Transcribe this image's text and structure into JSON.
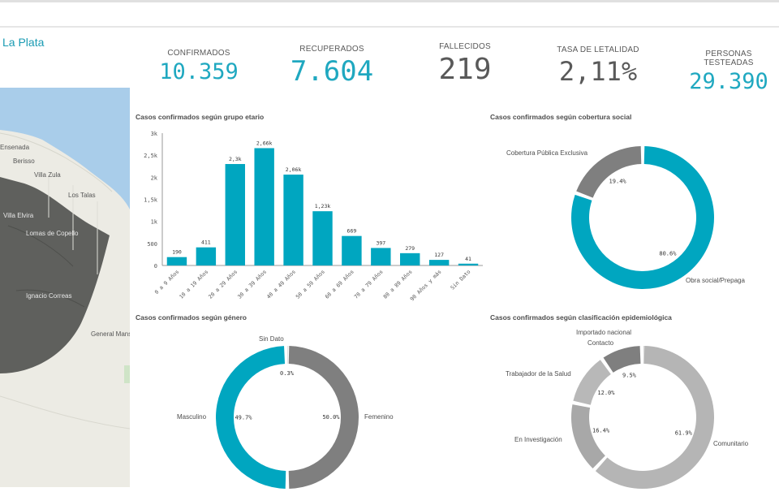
{
  "header": {
    "place": "La Plata"
  },
  "map": {
    "labels": [
      "Ensenada",
      "Berisso",
      "Villa Zula",
      "Los Talas",
      "Villa Elvira",
      "Lomas de Copello",
      "Ignacio Correas",
      "General Mansilla"
    ]
  },
  "kpis": [
    {
      "label": "CONFIRMADOS",
      "value": "10.359",
      "color": "#1fa8c0"
    },
    {
      "label": "RECUPERADOS",
      "value": "7.604",
      "color": "#1fa8c0"
    },
    {
      "label": "FALLECIDOS",
      "value": "219",
      "color": "#595959"
    },
    {
      "label": "TASA DE LETALIDAD",
      "value": "2,11%",
      "color": "#595959"
    },
    {
      "label": "PERSONAS TESTEADAS",
      "value": "29.390",
      "color": "#1fa8c0"
    }
  ],
  "colors": {
    "teal": "#00a6c0",
    "darkgray": "#7f7f7f",
    "lightgray": "#b5b5b5"
  },
  "chart_data": [
    {
      "type": "bar",
      "title": "Casos confirmados según grupo etario",
      "categories": [
        "0 a 9 Años",
        "10 a 19 Años",
        "20 a 29 Años",
        "30 a 39 Años",
        "40 a 49 Años",
        "50 a 59 Años",
        "60 a 69 Años",
        "70 a 79 Años",
        "80 a 89 Años",
        "90 Años y más",
        "Sin Dato"
      ],
      "values": [
        190,
        411,
        2300,
        2660,
        2060,
        1230,
        669,
        397,
        279,
        127,
        41
      ],
      "data_labels": [
        "190",
        "411",
        "2,3k",
        "2,66k",
        "2,06k",
        "1,23k",
        "669",
        "397",
        "279",
        "127",
        "41"
      ],
      "yticks": [
        "0",
        "500",
        "1k",
        "1,5k",
        "2k",
        "2,5k",
        "3k"
      ],
      "ylim": [
        0,
        3000
      ]
    },
    {
      "type": "pie",
      "title": "Casos confirmados según cobertura social",
      "slices": [
        {
          "name": "Obra social/Prepaga",
          "value": 80.6,
          "label": "80.6%",
          "color": "#00a6c0"
        },
        {
          "name": "Cobertura Pública Exclusiva",
          "value": 19.4,
          "label": "19.4%",
          "color": "#7f7f7f"
        }
      ]
    },
    {
      "type": "pie",
      "title": "Casos confirmados según género",
      "slices": [
        {
          "name": "Femenino",
          "value": 50.0,
          "label": "50.0%",
          "color": "#7f7f7f"
        },
        {
          "name": "Masculino",
          "value": 49.7,
          "label": "49.7%",
          "color": "#00a6c0"
        },
        {
          "name": "Sin Dato",
          "value": 0.3,
          "label": "0.3%",
          "color": "#b5b5b5"
        }
      ]
    },
    {
      "type": "pie",
      "title": "Casos confirmados según clasificación epidemiológica",
      "slices": [
        {
          "name": "Comunitario",
          "value": 61.9,
          "label": "61.9%",
          "color": "#b5b5b5"
        },
        {
          "name": "En Investigación",
          "value": 16.4,
          "label": "16.4%",
          "color": "#a8a8a8"
        },
        {
          "name": "Trabajador de la Salud",
          "value": 12.0,
          "label": "12.0%",
          "color": "#b8b8b8"
        },
        {
          "name": "Contacto",
          "value": 9.5,
          "label": "9.5%",
          "color": "#7f7f7f"
        },
        {
          "name": "Importado nacional",
          "value": 0.2,
          "label": "",
          "color": "#9a9a9a"
        }
      ]
    }
  ]
}
